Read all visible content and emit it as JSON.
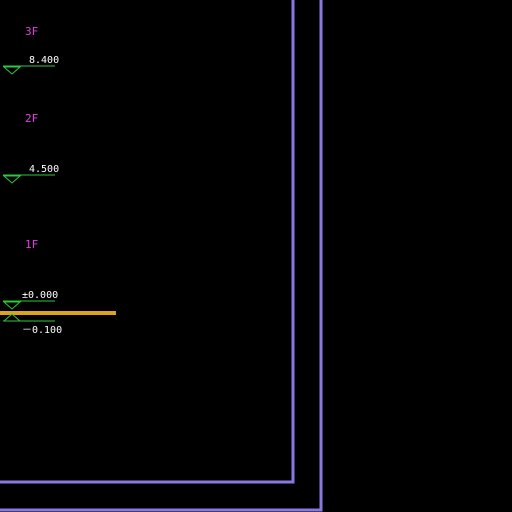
{
  "colors": {
    "background": "#000000",
    "frame": "#8a78e0",
    "floor_label": "#e040e0",
    "level_marker": "#2ec83c",
    "elevation_text": "#ffffff",
    "ground_line": "#e0a020"
  },
  "levels": [
    {
      "floor": "3F",
      "elevation": "8.400",
      "below": false
    },
    {
      "floor": "2F",
      "elevation": "4.500",
      "below": false
    },
    {
      "floor": "1F",
      "elevation": "±0.000",
      "below": false
    },
    {
      "floor": "",
      "elevation": "－0.100",
      "below": true
    }
  ]
}
